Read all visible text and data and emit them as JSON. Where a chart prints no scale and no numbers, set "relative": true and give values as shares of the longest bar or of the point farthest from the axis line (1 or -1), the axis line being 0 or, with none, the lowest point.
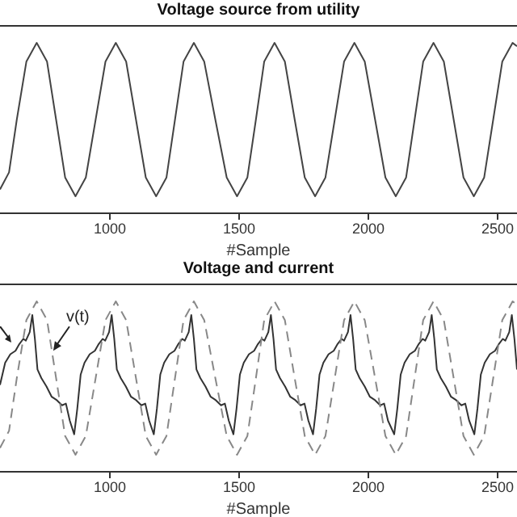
{
  "chart_data": [
    {
      "type": "line",
      "title": "Voltage source from utility",
      "xlabel": "#Sample",
      "relative": true,
      "xlim": [
        575,
        2575
      ],
      "xticks": [
        1000,
        1500,
        2000,
        2500
      ],
      "marker": "none",
      "series": [
        {
          "color": "#444444",
          "line_style": "solid",
          "x": [
            575,
            610,
            640,
            677,
            717,
            757,
            792,
            827,
            867,
            907,
            945,
            983,
            1023,
            1063,
            1101,
            1139,
            1179,
            1219,
            1252,
            1285,
            1325,
            1365,
            1408,
            1452,
            1492,
            1532,
            1565,
            1597,
            1637,
            1677,
            1715,
            1754,
            1794,
            1834,
            1870,
            1906,
            1946,
            1986,
            2026,
            2066,
            2106,
            2146,
            2179,
            2212,
            2252,
            2292,
            2330,
            2368,
            2408,
            2448,
            2483,
            2518,
            2558,
            2575
          ],
          "values": [
            0.14,
            0.24,
            0.55,
            0.89,
            1,
            0.89,
            0.55,
            0.21,
            0.1,
            0.21,
            0.55,
            0.89,
            1,
            0.89,
            0.55,
            0.21,
            0.1,
            0.21,
            0.55,
            0.89,
            1,
            0.89,
            0.55,
            0.21,
            0.1,
            0.21,
            0.55,
            0.89,
            1,
            0.89,
            0.55,
            0.21,
            0.1,
            0.21,
            0.55,
            0.89,
            1,
            0.89,
            0.55,
            0.21,
            0.1,
            0.21,
            0.55,
            0.89,
            1,
            0.89,
            0.55,
            0.21,
            0.1,
            0.21,
            0.55,
            0.89,
            1,
            0.98
          ]
        }
      ]
    },
    {
      "type": "line",
      "title": "Voltage and current",
      "xlabel": "#Sample",
      "relative": true,
      "xlim": [
        575,
        2575
      ],
      "xticks": [
        1000,
        1500,
        2000,
        2500
      ],
      "marker": "none",
      "annotations": [
        {
          "text": "v(t)",
          "x": 781,
          "y": 0.71
        }
      ],
      "series": [
        {
          "color": "#333333",
          "line_style": "solid",
          "x": [
            575,
            595,
            615,
            635,
            650,
            665,
            675,
            690,
            700,
            710,
            720,
            735,
            755,
            775,
            795,
            815,
            830,
            845,
            862,
            874,
            887,
            902,
            922,
            942,
            957,
            972,
            982,
            997,
            1007,
            1017,
            1027,
            1042,
            1062,
            1082,
            1102,
            1122,
            1137,
            1152,
            1170,
            1182,
            1195,
            1210,
            1230,
            1250,
            1265,
            1280,
            1290,
            1305,
            1315,
            1325,
            1335,
            1350,
            1370,
            1390,
            1410,
            1430,
            1445,
            1460,
            1478,
            1490,
            1503,
            1518,
            1538,
            1558,
            1573,
            1588,
            1598,
            1613,
            1623,
            1633,
            1643,
            1658,
            1678,
            1698,
            1718,
            1738,
            1753,
            1768,
            1786,
            1798,
            1811,
            1826,
            1846,
            1866,
            1881,
            1896,
            1906,
            1921,
            1931,
            1941,
            1951,
            1966,
            1986,
            2006,
            2026,
            2046,
            2061,
            2076,
            2100,
            2112,
            2125,
            2140,
            2160,
            2180,
            2195,
            2210,
            2220,
            2235,
            2245,
            2255,
            2265,
            2280,
            2300,
            2320,
            2340,
            2360,
            2375,
            2390,
            2410,
            2422,
            2435,
            2450,
            2470,
            2490,
            2505,
            2520,
            2530,
            2545,
            2555,
            2565,
            2575
          ],
          "values": [
            0.51,
            0.64,
            0.69,
            0.71,
            0.75,
            0.78,
            0.77,
            0.82,
            0.92,
            0.78,
            0.6,
            0.55,
            0.5,
            0.44,
            0.42,
            0.39,
            0.4,
            0.3,
            0.22,
            0.37,
            0.57,
            0.64,
            0.69,
            0.71,
            0.75,
            0.78,
            0.77,
            0.82,
            0.92,
            0.78,
            0.6,
            0.55,
            0.5,
            0.44,
            0.42,
            0.39,
            0.4,
            0.3,
            0.22,
            0.37,
            0.57,
            0.64,
            0.69,
            0.71,
            0.75,
            0.78,
            0.77,
            0.82,
            0.92,
            0.78,
            0.6,
            0.55,
            0.5,
            0.44,
            0.42,
            0.39,
            0.4,
            0.3,
            0.22,
            0.37,
            0.57,
            0.64,
            0.69,
            0.71,
            0.75,
            0.78,
            0.77,
            0.82,
            0.92,
            0.78,
            0.6,
            0.55,
            0.5,
            0.44,
            0.42,
            0.39,
            0.4,
            0.3,
            0.22,
            0.37,
            0.57,
            0.64,
            0.69,
            0.71,
            0.75,
            0.78,
            0.77,
            0.82,
            0.92,
            0.78,
            0.6,
            0.55,
            0.5,
            0.44,
            0.42,
            0.39,
            0.4,
            0.3,
            0.22,
            0.37,
            0.57,
            0.64,
            0.69,
            0.71,
            0.75,
            0.78,
            0.77,
            0.82,
            0.92,
            0.78,
            0.6,
            0.55,
            0.5,
            0.44,
            0.42,
            0.39,
            0.4,
            0.3,
            0.22,
            0.37,
            0.57,
            0.64,
            0.69,
            0.71,
            0.75,
            0.78,
            0.77,
            0.82,
            0.92,
            0.78,
            0.6
          ]
        },
        {
          "color": "#888888",
          "line_style": "dashed",
          "x": [
            575,
            610,
            640,
            677,
            717,
            757,
            792,
            827,
            867,
            907,
            945,
            983,
            1023,
            1063,
            1101,
            1139,
            1179,
            1219,
            1252,
            1285,
            1325,
            1365,
            1408,
            1452,
            1492,
            1532,
            1565,
            1597,
            1637,
            1677,
            1715,
            1754,
            1794,
            1834,
            1870,
            1906,
            1946,
            1986,
            2026,
            2066,
            2106,
            2146,
            2179,
            2212,
            2252,
            2292,
            2330,
            2368,
            2408,
            2448,
            2483,
            2518,
            2558,
            2575
          ],
          "values": [
            0.14,
            0.24,
            0.55,
            0.89,
            1,
            0.89,
            0.55,
            0.21,
            0.1,
            0.21,
            0.55,
            0.89,
            1,
            0.89,
            0.55,
            0.21,
            0.1,
            0.21,
            0.55,
            0.89,
            1,
            0.89,
            0.55,
            0.21,
            0.1,
            0.21,
            0.55,
            0.89,
            1,
            0.89,
            0.55,
            0.21,
            0.1,
            0.21,
            0.55,
            0.89,
            1,
            0.89,
            0.55,
            0.21,
            0.1,
            0.21,
            0.55,
            0.89,
            1,
            0.89,
            0.55,
            0.21,
            0.1,
            0.21,
            0.55,
            0.89,
            1,
            0.98
          ]
        }
      ]
    }
  ]
}
